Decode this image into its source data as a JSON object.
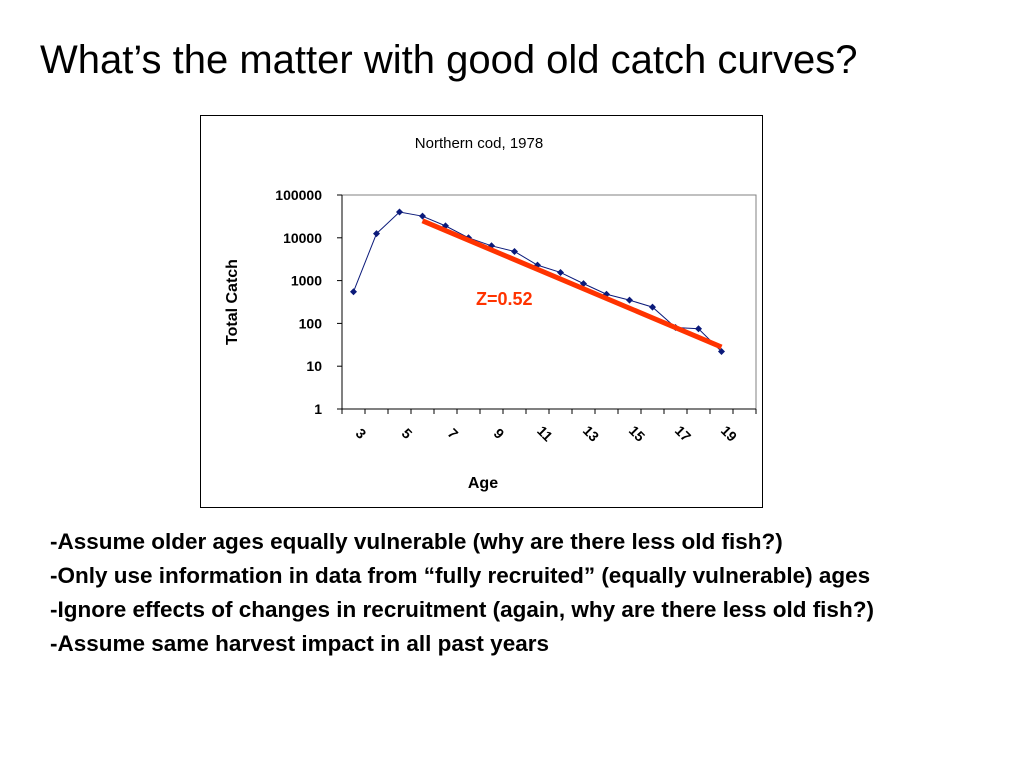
{
  "slide": {
    "title": "What’s the matter with good old catch curves?",
    "bullets": [
      "-Assume older ages equally vulnerable (why are there less old fish?)",
      "-Only use information in data from “fully recruited” (equally vulnerable) ages",
      "-Ignore effects of changes in recruitment (again, why are there less old fish?)",
      "-Assume same harvest impact in all past years"
    ]
  },
  "chart_data": {
    "type": "line",
    "title": "Northern cod, 1978",
    "xlabel": "Age",
    "ylabel": "Total Catch",
    "y_scale": "log",
    "ylim": [
      1,
      100000
    ],
    "xlim": [
      3,
      20
    ],
    "x_tick_labels": [
      "3",
      "5",
      "7",
      "9",
      "11",
      "13",
      "15",
      "17",
      "19"
    ],
    "y_tick_labels": [
      "1",
      "10",
      "100",
      "1000",
      "10000",
      "100000"
    ],
    "series": [
      {
        "color": "#0b1a7a",
        "marker": "diamond",
        "x": [
          3,
          4,
          5,
          6,
          7,
          8,
          9,
          10,
          11,
          12,
          13,
          14,
          15,
          16,
          17,
          18,
          19
        ],
        "values": [
          550,
          12500,
          40000,
          32000,
          19000,
          10000,
          6500,
          4800,
          2300,
          1550,
          850,
          480,
          350,
          240,
          80,
          75,
          22
        ]
      }
    ],
    "fit_line": {
      "color": "#ff3300",
      "label": "Z=0.52",
      "x": [
        6,
        19
      ],
      "values": [
        25000,
        28
      ]
    },
    "grid": false,
    "legend": "none"
  }
}
